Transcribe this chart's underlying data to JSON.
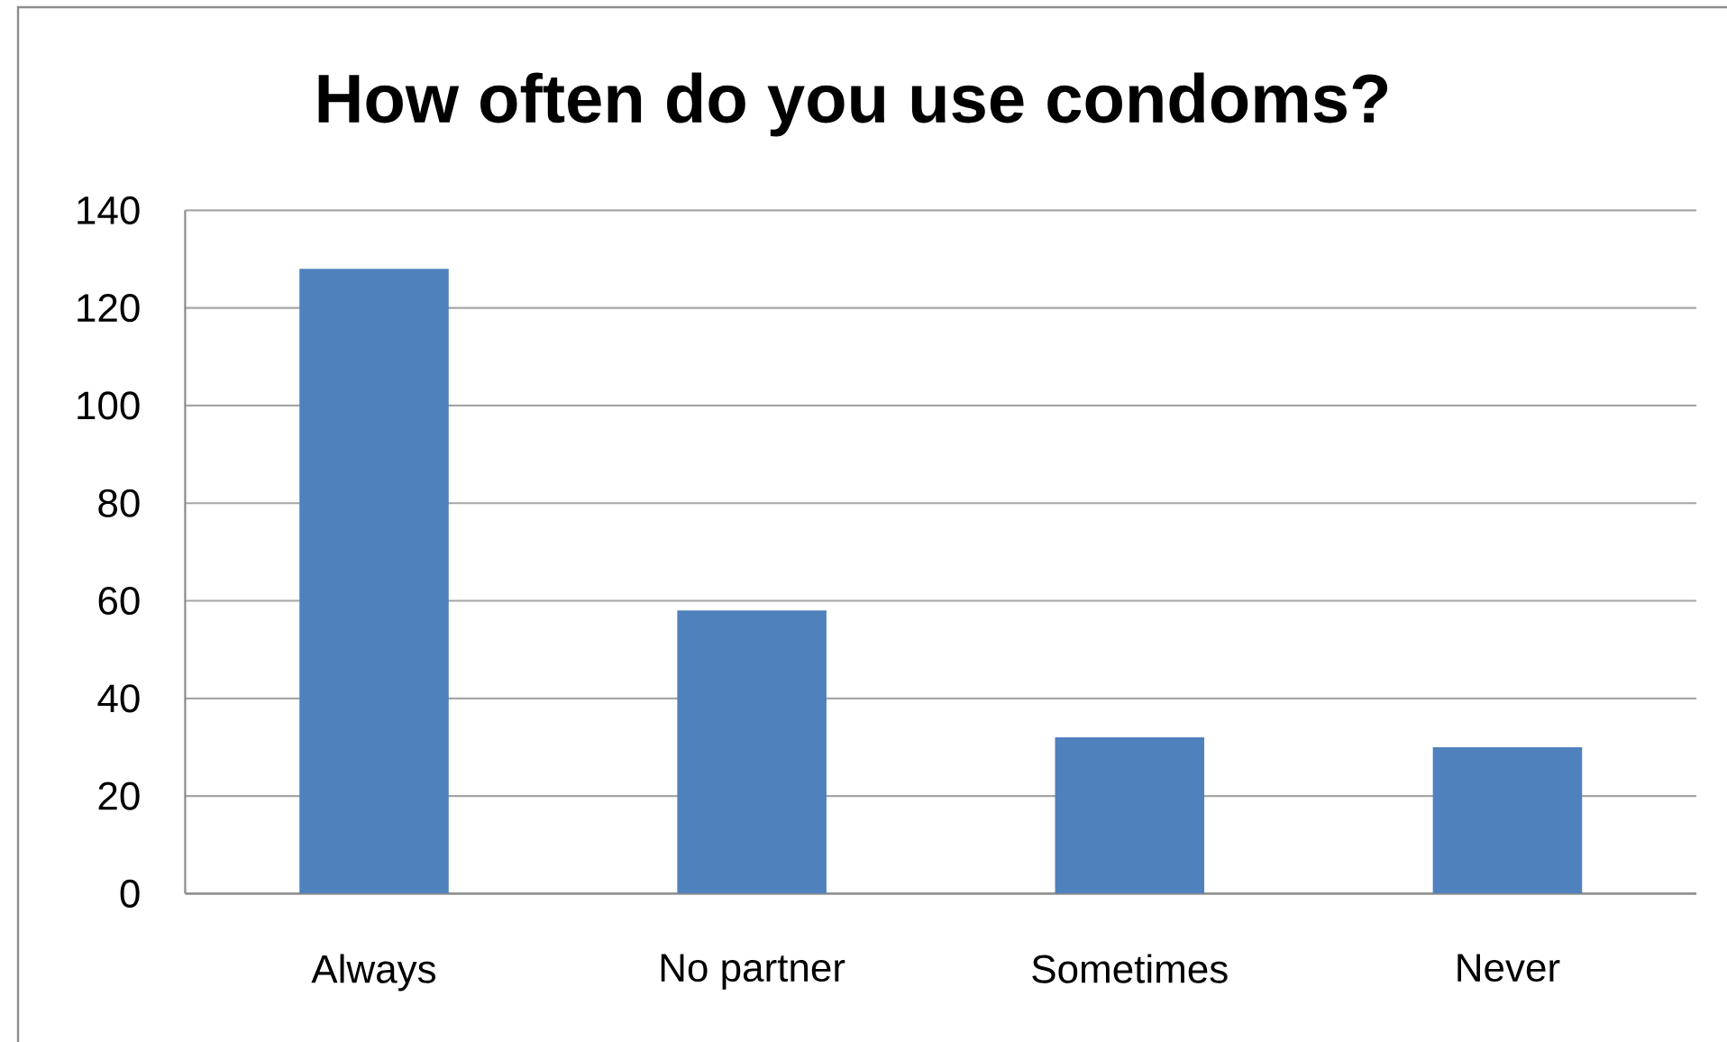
{
  "chart_data": {
    "type": "bar",
    "title": "How often do you use condoms?",
    "categories": [
      "Always",
      "No partner",
      "Sometimes",
      "Never"
    ],
    "values": [
      128,
      58,
      32,
      30
    ],
    "color": "#4f81bd",
    "ylim": [
      0,
      140
    ],
    "yticks": [
      0,
      20,
      40,
      60,
      80,
      100,
      120,
      140
    ],
    "grid": "y"
  }
}
